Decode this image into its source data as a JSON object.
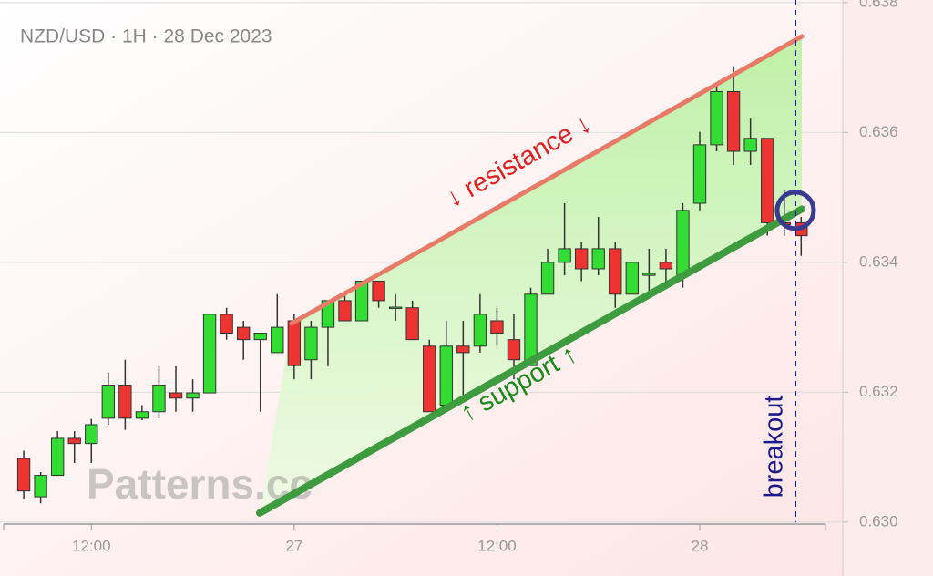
{
  "chart_data": {
    "type": "candlestick",
    "title": "NZD/USD · 1H · 28 Dec 2023",
    "watermark": "Patterns.cc",
    "categories": [
      null,
      null,
      null,
      null,
      "12:00",
      null,
      null,
      null,
      null,
      null,
      null,
      null,
      null,
      null,
      null,
      null,
      "27",
      null,
      null,
      null,
      null,
      null,
      null,
      null,
      null,
      null,
      null,
      null,
      "12:00",
      null,
      null,
      null,
      null,
      null,
      null,
      null,
      null,
      null,
      null,
      null,
      "28",
      null,
      null,
      null,
      null,
      null,
      null
    ],
    "open": [
      0.63098,
      0.63039,
      0.63072,
      0.63129,
      0.63121,
      0.6316,
      0.63211,
      0.6316,
      0.6317,
      0.63199,
      0.63191,
      0.63199,
      0.6332,
      0.633,
      0.63281,
      0.63261,
      0.6331,
      0.6325,
      0.633,
      0.63341,
      0.6331,
      0.63371,
      0.6333,
      0.6333,
      0.63271,
      0.6318,
      0.63271,
      0.63271,
      0.6331,
      0.63281,
      0.63241,
      0.63351,
      0.634,
      0.63421,
      0.6339,
      0.63421,
      0.63351,
      0.6338,
      0.634,
      0.6338,
      0.63491,
      0.63581,
      0.63663,
      0.63571,
      0.63591,
      0.63461,
      0.63461
    ],
    "high": [
      0.6311,
      0.63077,
      0.6314,
      0.6314,
      0.63159,
      0.6323,
      0.6325,
      0.6318,
      0.6324,
      0.6324,
      0.6322,
      0.6332,
      0.6333,
      0.6331,
      0.63291,
      0.63351,
      0.6332,
      0.6331,
      0.63341,
      0.63351,
      0.63371,
      0.63371,
      0.63351,
      0.63341,
      0.63281,
      0.6331,
      0.6331,
      0.63351,
      0.6333,
      0.6332,
      0.63361,
      0.63421,
      0.63491,
      0.63431,
      0.6347,
      0.63431,
      0.634,
      0.63421,
      0.63421,
      0.63491,
      0.63601,
      0.63671,
      0.63702,
      0.63622,
      0.63591,
      0.63511,
      0.6347
    ],
    "low": [
      0.63035,
      0.63029,
      0.63072,
      0.63091,
      0.63091,
      0.6315,
      0.63142,
      0.63157,
      0.6316,
      0.6317,
      0.6317,
      0.63199,
      0.63281,
      0.6325,
      0.6317,
      0.63261,
      0.6322,
      0.6322,
      0.6324,
      0.6331,
      0.6331,
      0.6333,
      0.6331,
      0.63281,
      0.6317,
      0.6317,
      0.63191,
      0.63261,
      0.63271,
      0.6322,
      0.63241,
      0.63351,
      0.6338,
      0.63371,
      0.6338,
      0.6333,
      0.63351,
      0.63351,
      0.63361,
      0.63361,
      0.6348,
      0.63571,
      0.6355,
      0.6355,
      0.63441,
      0.63441,
      0.6341
    ],
    "close": [
      0.63048,
      0.63072,
      0.63129,
      0.63121,
      0.6315,
      0.63211,
      0.6316,
      0.6317,
      0.63211,
      0.63191,
      0.63199,
      0.6332,
      0.63291,
      0.63281,
      0.63291,
      0.633,
      0.63241,
      0.633,
      0.63341,
      0.6331,
      0.63371,
      0.63341,
      0.63331,
      0.63281,
      0.6317,
      0.63271,
      0.63261,
      0.6332,
      0.63291,
      0.6325,
      0.63351,
      0.634,
      0.63421,
      0.6339,
      0.63421,
      0.63351,
      0.634,
      0.63383,
      0.6339,
      0.6348,
      0.63581,
      0.63663,
      0.63571,
      0.63591,
      0.63461,
      0.63458,
      0.63441
    ],
    "up_color": "#33dd33",
    "down_color": "#ee3333",
    "xlim": [
      -1.19,
      47.44
    ],
    "ylim": [
      0.62997,
      0.63804
    ],
    "yticks": [
      {
        "value": 0.63,
        "label": "0.630"
      },
      {
        "value": 0.632,
        "label": "0.632"
      },
      {
        "value": 0.634,
        "label": "0.634"
      },
      {
        "value": 0.636,
        "label": "0.636"
      },
      {
        "value": 0.638,
        "label": "0.638"
      }
    ],
    "grid": true,
    "lines": [
      {
        "label": "↓ resistance ↓",
        "color": "#e87a68",
        "text_color": "#e02020",
        "x": [
          15.85,
          46.04
        ],
        "y": [
          0.63306,
          0.63748
        ]
      },
      {
        "label": "↑ support ↑",
        "color": "#3f9b3f",
        "text_color": "#1a8a1a",
        "x": [
          13.96,
          46.04
        ],
        "y": [
          0.63014,
          0.63482
        ]
      }
    ],
    "breakout": {
      "label": "breakout",
      "color": "#1a1a8a",
      "x": 45.66,
      "y": 0.6348
    }
  }
}
